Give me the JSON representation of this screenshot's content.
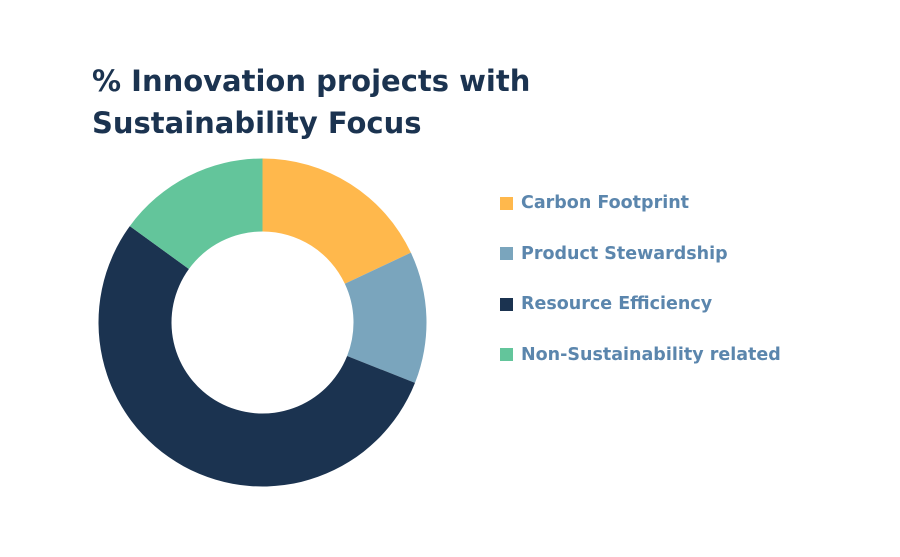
{
  "chart_data": {
    "type": "pie",
    "title": "% Innovation projects with Sustainability Focus",
    "donut": true,
    "legend_position": "right",
    "series": [
      {
        "name": "Carbon Footprint",
        "value": 18,
        "color": "#ffb84c"
      },
      {
        "name": "Product Stewardship",
        "value": 13,
        "color": "#7aa5bd"
      },
      {
        "name": "Resource Efficiency",
        "value": 54,
        "color": "#1b3350"
      },
      {
        "name": "Non-Sustainability related",
        "value": 15,
        "color": "#63c59b"
      }
    ]
  }
}
